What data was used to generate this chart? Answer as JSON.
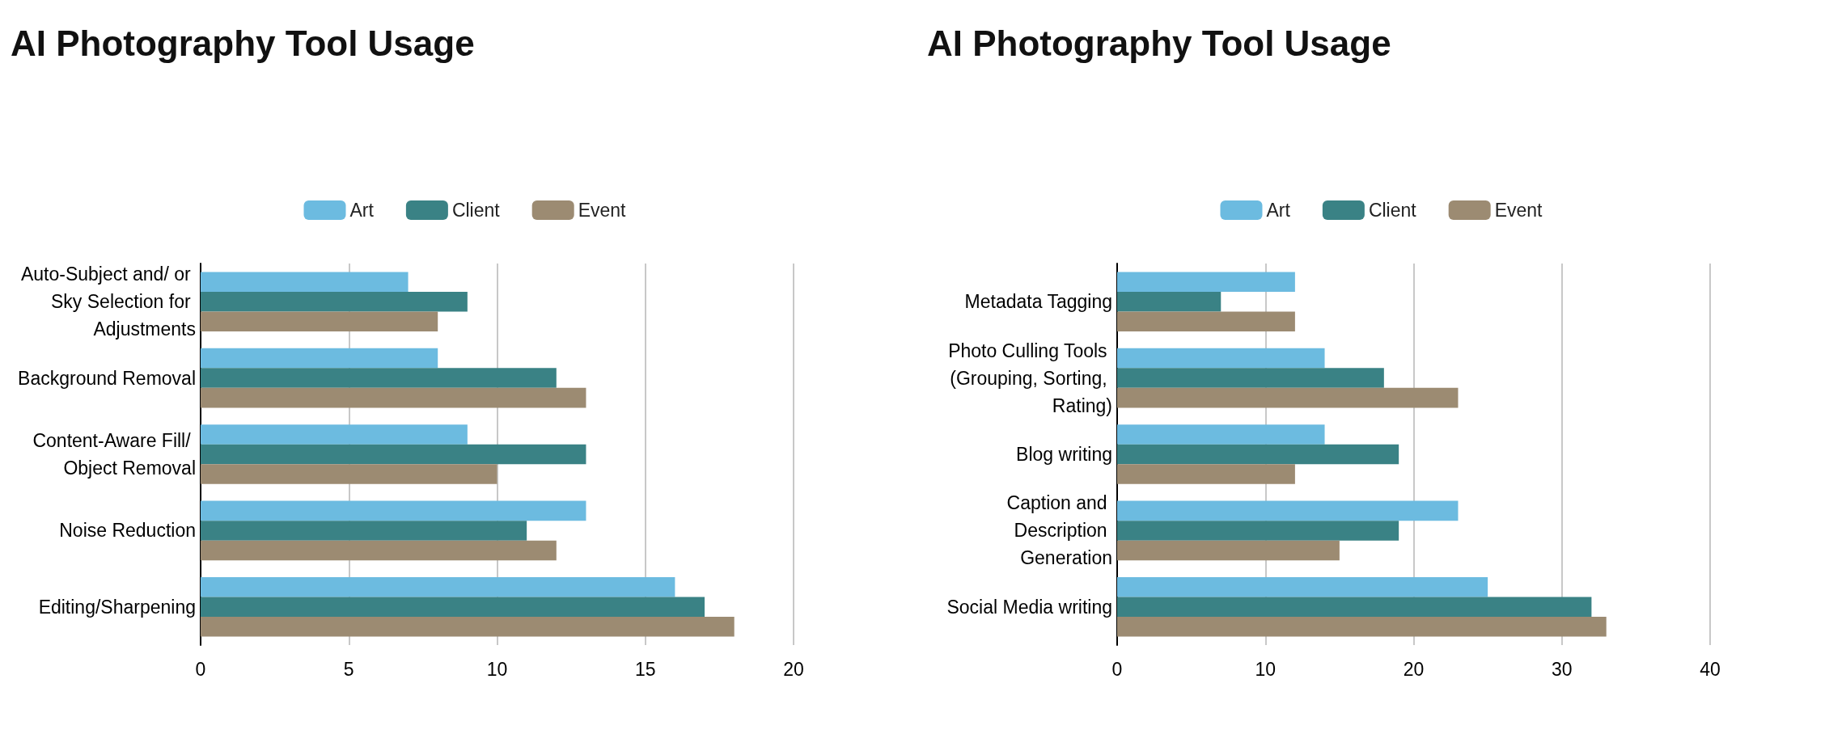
{
  "chart_data": [
    {
      "type": "bar",
      "title": "AI Photography Tool Usage",
      "orientation": "horizontal",
      "categories": [
        "Auto-Subject and/ or Sky Selection for Adjustments",
        "Background Removal",
        "Content-Aware Fill/ Object Removal",
        "Noise Reduction",
        "Editing/Sharpening"
      ],
      "series": [
        {
          "name": "Art",
          "color": "#6cbbe0",
          "values": [
            7,
            8,
            9,
            13,
            16
          ]
        },
        {
          "name": "Client",
          "color": "#3a8285",
          "values": [
            9,
            12,
            13,
            11,
            17
          ]
        },
        {
          "name": "Event",
          "color": "#9c8b72",
          "values": [
            8,
            13,
            10,
            12,
            18
          ]
        }
      ],
      "xlim": [
        0,
        20
      ],
      "xticks": [
        0,
        5,
        10,
        15,
        20
      ],
      "grid": "x",
      "legend": "top"
    },
    {
      "type": "bar",
      "title": "AI Photography Tool Usage",
      "orientation": "horizontal",
      "categories": [
        "Metadata Tagging",
        "Photo Culling Tools (Grouping, Sorting, Rating)",
        "Blog writing",
        "Caption and Description Generation",
        "Social Media writing"
      ],
      "series": [
        {
          "name": "Art",
          "color": "#6cbbe0",
          "values": [
            12,
            14,
            14,
            23,
            25
          ]
        },
        {
          "name": "Client",
          "color": "#3a8285",
          "values": [
            7,
            18,
            19,
            19,
            32
          ]
        },
        {
          "name": "Event",
          "color": "#9c8b72",
          "values": [
            12,
            23,
            12,
            15,
            33
          ]
        }
      ],
      "xlim": [
        0,
        40
      ],
      "xticks": [
        0,
        10,
        20,
        30,
        40
      ],
      "grid": "x",
      "legend": "top"
    }
  ]
}
